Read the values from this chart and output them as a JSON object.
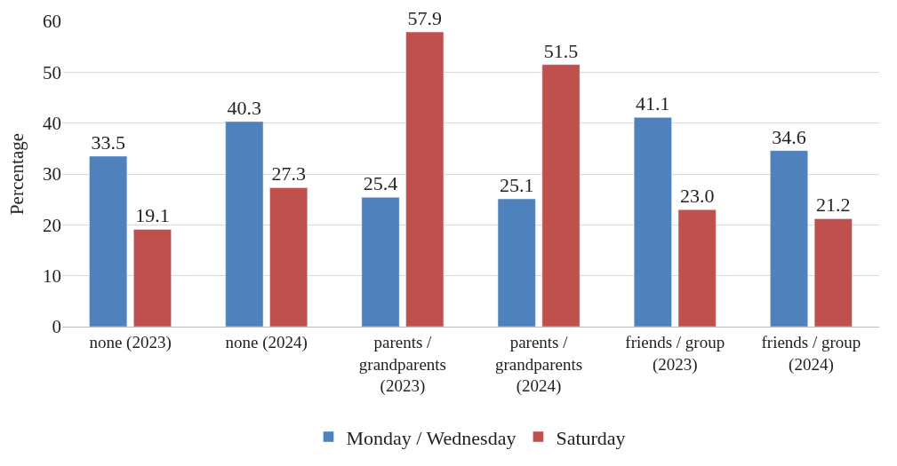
{
  "chart_data": {
    "type": "bar",
    "ylabel": "Percentage",
    "categories": [
      "none (2023)",
      "none (2024)",
      "parents / grandparents (2023)",
      "parents / grandparents (2024)",
      "friends / group (2023)",
      "friends / group (2024)"
    ],
    "series": [
      {
        "name": "Monday / Wednesday",
        "color": "#4f81bd",
        "values": [
          33.5,
          40.3,
          25.4,
          25.1,
          41.1,
          34.6
        ]
      },
      {
        "name": "Saturday",
        "color": "#c0504d",
        "values": [
          19.1,
          27.3,
          57.9,
          51.5,
          23.0,
          21.2
        ],
        "value_labels": [
          "19.1",
          "27.3",
          "57.9",
          "51.5",
          "23.0",
          "21.2"
        ]
      }
    ],
    "ylim": [
      0,
      60
    ],
    "yticks": [
      0,
      10,
      20,
      30,
      40,
      50,
      60
    ],
    "grid": "y",
    "legend": "bottom",
    "data_labels": true
  }
}
